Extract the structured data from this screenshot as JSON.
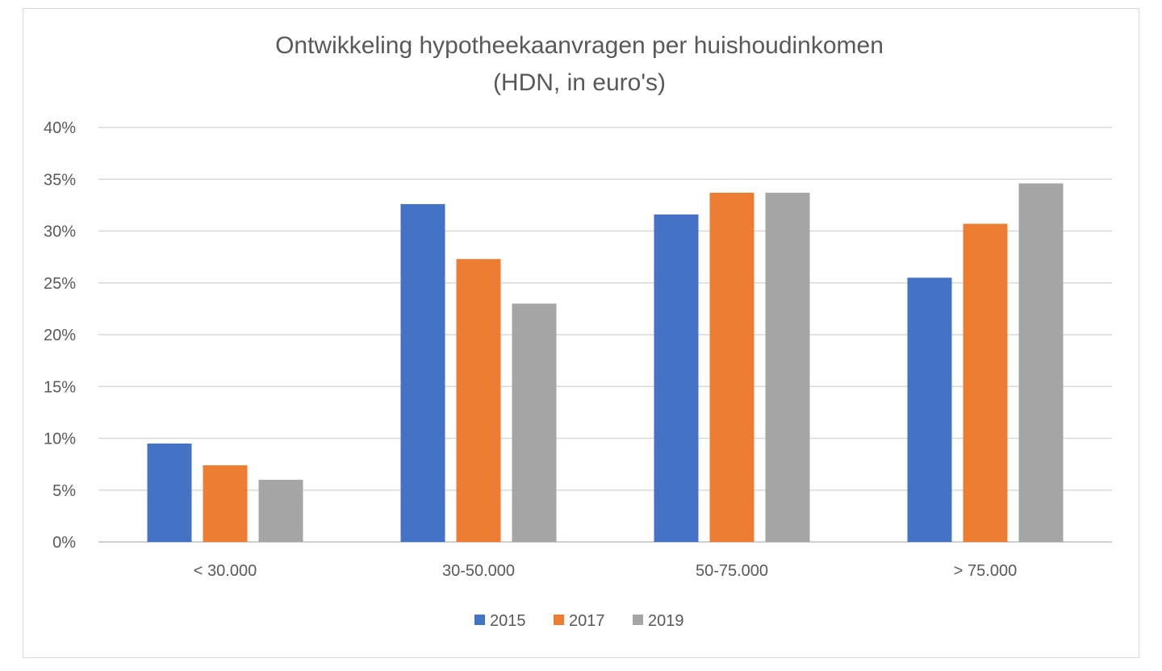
{
  "chart_data": {
    "type": "bar",
    "title": "Ontwikkeling hypotheekaanvragen per huishoudinkomen",
    "subtitle": "(HDN, in euro's)",
    "xlabel": "",
    "ylabel": "",
    "categories": [
      "< 30.000",
      "30-50.000",
      "50-75.000",
      "> 75.000"
    ],
    "series": [
      {
        "name": "2015",
        "color": "#4472c4",
        "values": [
          9.5,
          32.6,
          31.6,
          25.5
        ]
      },
      {
        "name": "2017",
        "color": "#ed7d31",
        "values": [
          7.4,
          27.3,
          33.7,
          30.7
        ]
      },
      {
        "name": "2019",
        "color": "#a5a5a5",
        "values": [
          6.0,
          23.0,
          33.7,
          34.6
        ]
      }
    ],
    "ylim": [
      0,
      40
    ],
    "yticks": [
      0,
      5,
      10,
      15,
      20,
      25,
      30,
      35,
      40
    ],
    "ytick_labels": [
      "0%",
      "5%",
      "10%",
      "15%",
      "20%",
      "25%",
      "30%",
      "35%",
      "40%"
    ],
    "grid": true,
    "legend_position": "bottom"
  }
}
